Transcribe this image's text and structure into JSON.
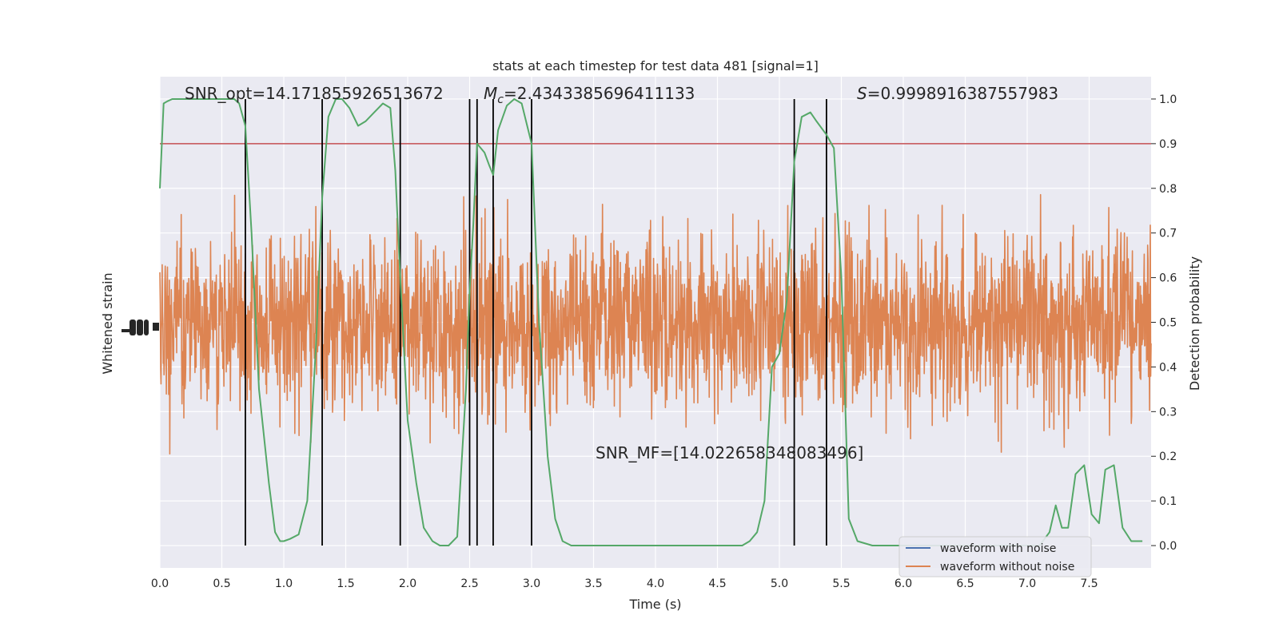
{
  "chart_data": {
    "type": "line",
    "title": "stats at each timestep for test data 481 [signal=1]",
    "xlabel": "Time (s)",
    "ylabel_left": "Whitened strain",
    "ylabel_right": "Detection probability",
    "xlim": [
      0.0,
      8.0
    ],
    "ylim_right": [
      -0.05,
      1.05
    ],
    "x_ticks": [
      "0.0",
      "0.5",
      "1.0",
      "1.5",
      "2.0",
      "2.5",
      "3.0",
      "3.5",
      "4.0",
      "4.5",
      "5.0",
      "5.5",
      "6.0",
      "6.5",
      "7.0",
      "7.5"
    ],
    "x_tick_values": [
      0.0,
      0.5,
      1.0,
      1.5,
      2.0,
      2.5,
      3.0,
      3.5,
      4.0,
      4.5,
      5.0,
      5.5,
      6.0,
      6.5,
      7.0,
      7.5
    ],
    "y_right_ticks": [
      "0.0",
      "0.1",
      "0.2",
      "0.3",
      "0.4",
      "0.5",
      "0.6",
      "0.7",
      "0.8",
      "0.9",
      "1.0"
    ],
    "y_right_tick_values": [
      0.0,
      0.1,
      0.2,
      0.3,
      0.4,
      0.5,
      0.6,
      0.7,
      0.8,
      0.9,
      1.0
    ],
    "threshold": 0.9,
    "annotations": {
      "snr_opt": "SNR_opt=14.171855926513672",
      "mc_symbol": "M",
      "mc_sub": "c",
      "mc_value": "=2.4343385696411133",
      "s_symbol": "S",
      "s_value": "=0.9998916387557983",
      "snr_mf": "SNR_MF=[14.022658348083496]"
    },
    "event_lines_x": [
      0.69,
      1.31,
      1.94,
      2.5,
      2.56,
      2.69,
      3.0,
      5.12,
      5.38
    ],
    "series": [
      {
        "name": "waveform with noise",
        "color": "#4c72b0"
      },
      {
        "name": "waveform without noise",
        "color": "#dd8452"
      }
    ],
    "detection_probability": {
      "name": "detection probability",
      "color": "#55a868",
      "x": [
        0.0,
        0.03,
        0.06,
        0.1,
        0.2,
        0.3,
        0.4,
        0.5,
        0.6,
        0.64,
        0.69,
        0.74,
        0.8,
        0.88,
        0.93,
        0.97,
        1.0,
        1.05,
        1.12,
        1.19,
        1.26,
        1.31,
        1.36,
        1.42,
        1.47,
        1.53,
        1.6,
        1.66,
        1.73,
        1.8,
        1.86,
        1.9,
        1.94,
        2.0,
        2.07,
        2.13,
        2.2,
        2.26,
        2.33,
        2.4,
        2.47,
        2.5,
        2.53,
        2.56,
        2.62,
        2.66,
        2.69,
        2.73,
        2.8,
        2.86,
        2.92,
        3.0,
        3.06,
        3.13,
        3.19,
        3.25,
        3.32,
        3.4,
        3.6,
        3.8,
        4.0,
        4.2,
        4.4,
        4.6,
        4.7,
        4.76,
        4.82,
        4.88,
        4.94,
        5.0,
        5.06,
        5.12,
        5.18,
        5.25,
        5.3,
        5.38,
        5.44,
        5.5,
        5.56,
        5.63,
        5.75,
        5.9,
        6.1,
        6.3,
        6.5,
        6.7,
        6.9,
        7.1,
        7.18,
        7.23,
        7.28,
        7.33,
        7.39,
        7.46,
        7.52,
        7.58,
        7.63,
        7.7,
        7.77,
        7.84,
        7.93
      ],
      "y": [
        0.8,
        0.99,
        0.995,
        1.0,
        1.0,
        1.0,
        1.0,
        1.0,
        1.0,
        0.99,
        0.94,
        0.7,
        0.35,
        0.14,
        0.03,
        0.01,
        0.01,
        0.015,
        0.025,
        0.1,
        0.45,
        0.78,
        0.96,
        1.0,
        1.0,
        0.98,
        0.94,
        0.95,
        0.97,
        0.99,
        0.98,
        0.84,
        0.6,
        0.28,
        0.14,
        0.04,
        0.01,
        0.0,
        0.0,
        0.02,
        0.35,
        0.57,
        0.72,
        0.9,
        0.88,
        0.85,
        0.83,
        0.93,
        0.985,
        1.0,
        0.99,
        0.9,
        0.5,
        0.2,
        0.06,
        0.01,
        0.0,
        0.0,
        0.0,
        0.0,
        0.0,
        0.0,
        0.0,
        0.0,
        0.0,
        0.01,
        0.03,
        0.1,
        0.4,
        0.43,
        0.55,
        0.86,
        0.96,
        0.97,
        0.95,
        0.92,
        0.89,
        0.6,
        0.06,
        0.01,
        0.0,
        0.0,
        0.0,
        0.0,
        0.0,
        0.0,
        0.0,
        0.0,
        0.03,
        0.09,
        0.04,
        0.04,
        0.16,
        0.18,
        0.07,
        0.05,
        0.17,
        0.18,
        0.04,
        0.01,
        0.01
      ]
    }
  }
}
